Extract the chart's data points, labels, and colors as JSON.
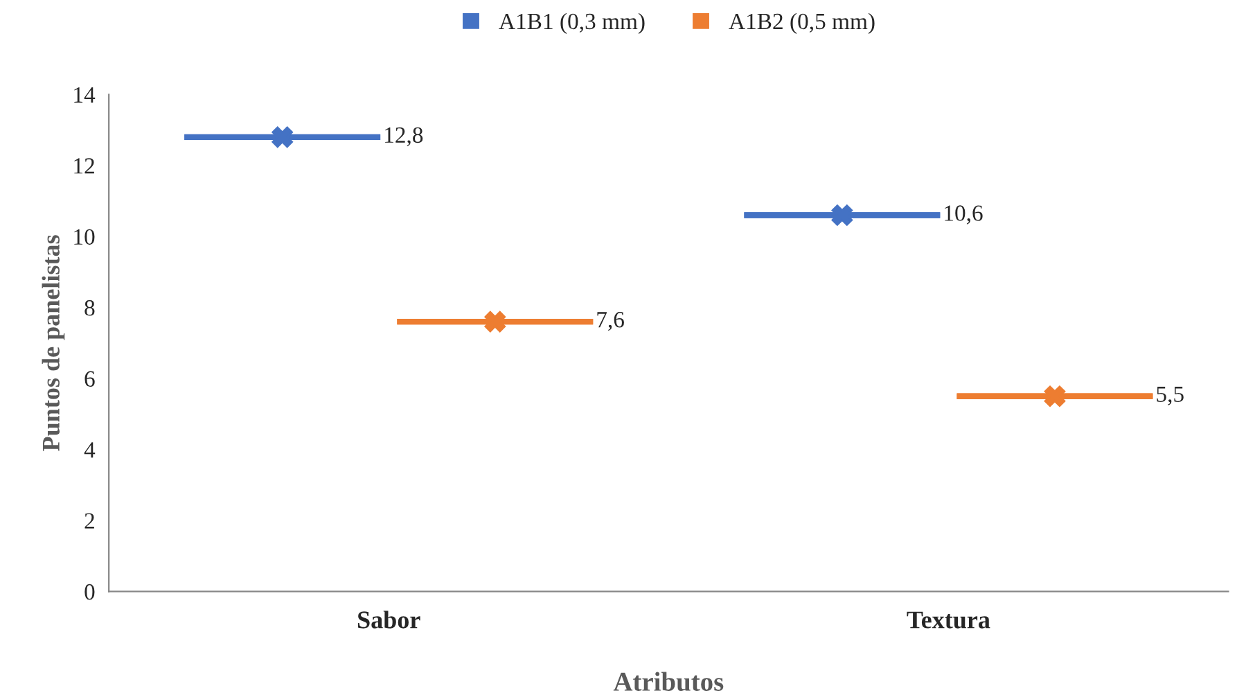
{
  "chart_data": {
    "type": "box",
    "xlabel": "Atributos",
    "ylabel": "Puntos de panelistas",
    "categories": [
      "Sabor",
      "Textura"
    ],
    "ylim": [
      0,
      14
    ],
    "yticks": [
      0,
      2,
      4,
      6,
      8,
      10,
      12,
      14
    ],
    "grid": false,
    "legend": "top",
    "marker": "cross",
    "series": [
      {
        "name": "A1B1 (0,3 mm)",
        "color": "#4472c4",
        "boxes": [
          {
            "low": 12.8,
            "q1": 12.8,
            "median": 12.8,
            "q3": 12.8,
            "high": 12.8,
            "mean": 12.8
          },
          {
            "low": 10.6,
            "q1": 10.6,
            "median": 10.6,
            "q3": 10.6,
            "high": 10.6,
            "mean": 10.6
          }
        ],
        "value_labels": [
          "12,8",
          "10,6"
        ]
      },
      {
        "name": "A1B2 (0,5 mm)",
        "color": "#ed7d31",
        "boxes": [
          {
            "low": 7.6,
            "q1": 7.6,
            "median": 7.6,
            "q3": 7.6,
            "high": 7.6,
            "mean": 7.6
          },
          {
            "low": 5.5,
            "q1": 5.5,
            "median": 5.5,
            "q3": 5.5,
            "high": 5.5,
            "mean": 5.5
          }
        ],
        "value_labels": [
          "7,6",
          "5,5"
        ]
      }
    ]
  }
}
